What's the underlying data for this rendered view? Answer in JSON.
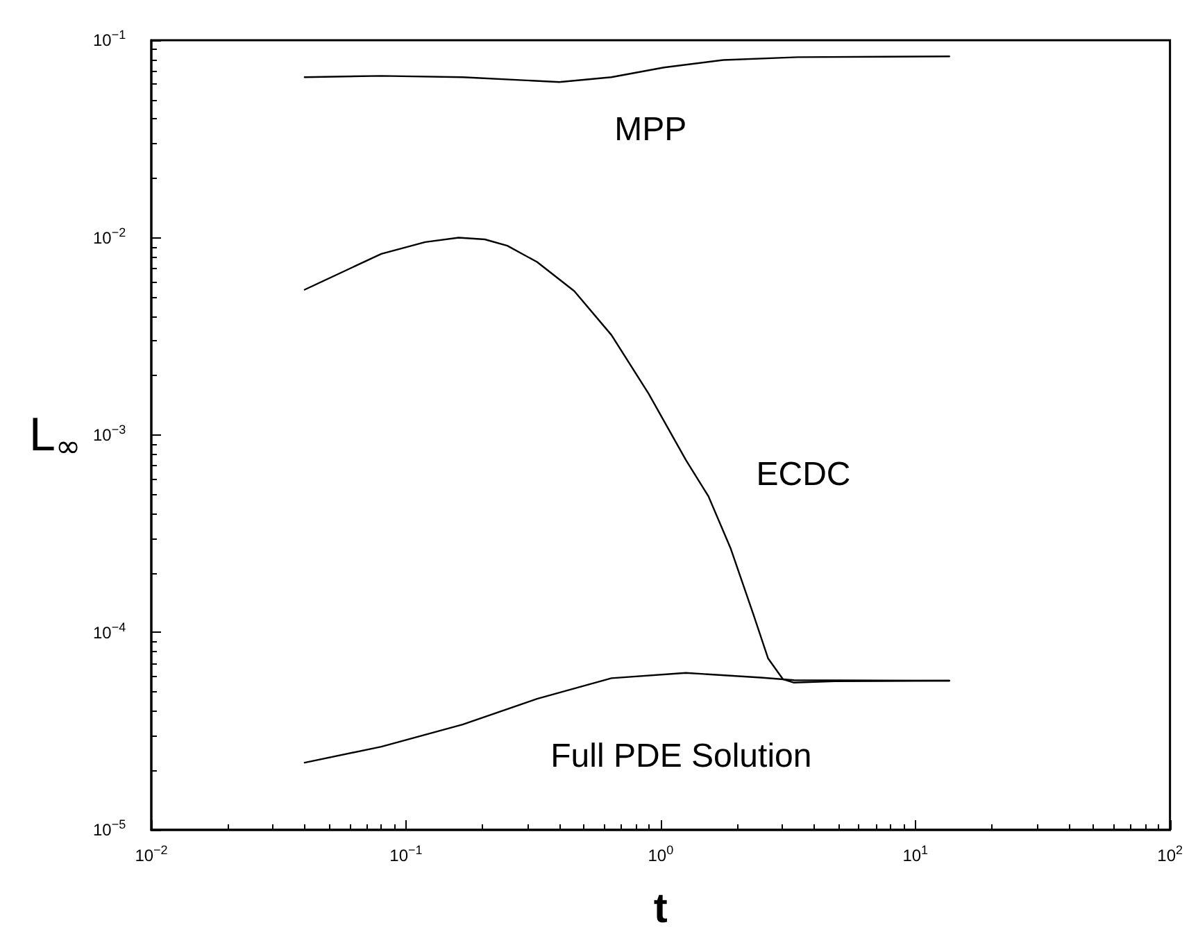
{
  "chart_data": {
    "type": "line",
    "xlabel": "t",
    "ylabel": "L$_{∞}$",
    "log": "xy",
    "grid": false,
    "marker": "none",
    "line_style": "solid",
    "xlim": [
      0.01,
      100
    ],
    "ylim": [
      1e-05,
      0.1
    ],
    "xticks": [
      {
        "value": 0.01,
        "label": "10$^{−2}$"
      },
      {
        "value": 0.1,
        "label": "10$^{−1}$"
      },
      {
        "value": 1,
        "label": "10$^{0}$"
      },
      {
        "value": 10,
        "label": "10$^{1}$"
      },
      {
        "value": 100,
        "label": "10$^{2}$"
      }
    ],
    "yticks": [
      {
        "value": 1e-05,
        "label": "10$^{−5}$"
      },
      {
        "value": 0.0001,
        "label": "10$^{−4}$"
      },
      {
        "value": 0.001,
        "label": "10$^{−3}$"
      },
      {
        "value": 0.01,
        "label": "10$^{−2}$"
      },
      {
        "value": 0.1,
        "label": "10$^{−1}$"
      }
    ],
    "series": [
      {
        "color": "#000000",
        "x": [
          0.04,
          0.08,
          0.167,
          0.4,
          0.64,
          1.03,
          1.76,
          3.45,
          13.6
        ],
        "values": [
          0.065,
          0.066,
          0.065,
          0.0614,
          0.065,
          0.0728,
          0.0794,
          0.0821,
          0.0828
        ]
      },
      {
        "color": "#000000",
        "x": [
          0.04,
          0.08,
          0.119,
          0.161,
          0.204,
          0.25,
          0.327,
          0.458,
          0.641,
          0.897,
          1.256,
          1.54,
          1.88,
          2.31,
          2.64,
          3.02,
          3.34,
          4.83,
          13.6
        ],
        "values": [
          0.00545,
          0.00828,
          0.0095,
          0.01,
          0.0098,
          0.0091,
          0.00753,
          0.00536,
          0.00321,
          0.00162,
          0.000748,
          0.00049,
          0.000268,
          0.000124,
          7.4e-05,
          5.8e-05,
          5.57e-05,
          5.66e-05,
          5.7e-05
        ]
      },
      {
        "color": "#000000",
        "x": [
          0.04,
          0.08,
          0.167,
          0.327,
          0.641,
          1.256,
          2.47,
          3.34,
          13.6
        ],
        "values": [
          2.19e-05,
          2.64e-05,
          3.42e-05,
          4.61e-05,
          5.87e-05,
          6.24e-05,
          5.91e-05,
          5.73e-05,
          5.7e-05
        ]
      }
    ],
    "annotations": [
      "MPP",
      "ECDC",
      "Full PDE Solution"
    ]
  }
}
